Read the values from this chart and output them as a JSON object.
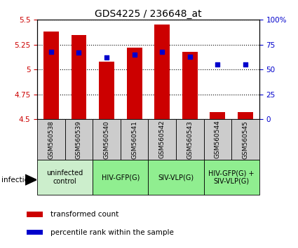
{
  "title": "GDS4225 / 236648_at",
  "samples": [
    "GSM560538",
    "GSM560539",
    "GSM560540",
    "GSM560541",
    "GSM560542",
    "GSM560543",
    "GSM560544",
    "GSM560545"
  ],
  "transformed_counts": [
    5.38,
    5.35,
    5.08,
    5.22,
    5.45,
    5.18,
    4.57,
    4.57
  ],
  "percentile_ranks": [
    68,
    67,
    62,
    65,
    68,
    63,
    55,
    55
  ],
  "ylim": [
    4.5,
    5.5
  ],
  "yticks": [
    4.5,
    4.75,
    5.0,
    5.25,
    5.5
  ],
  "ytick_labels": [
    "4.5",
    "4.75",
    "5",
    "5.25",
    "5.5"
  ],
  "y2lim": [
    0,
    100
  ],
  "y2ticks": [
    0,
    25,
    50,
    75,
    100
  ],
  "y2ticklabels": [
    "0",
    "25",
    "50",
    "75",
    "100%"
  ],
  "bar_color": "#cc0000",
  "dot_color": "#0000cc",
  "bar_width": 0.55,
  "group_labels": [
    "uninfected\ncontrol",
    "HIV-GFP(G)",
    "SIV-VLP(G)",
    "HIV-GFP(G) +\nSIV-VLP(G)"
  ],
  "group_ranges": [
    [
      0,
      1
    ],
    [
      2,
      3
    ],
    [
      4,
      5
    ],
    [
      6,
      7
    ]
  ],
  "group_colors": [
    "#cceecc",
    "#90ee90",
    "#90ee90",
    "#90ee90"
  ],
  "sample_bg_color": "#cccccc",
  "infection_label": "infection",
  "legend_bar_label": "transformed count",
  "legend_dot_label": "percentile rank within the sample",
  "title_fontsize": 10,
  "tick_fontsize": 7.5,
  "sample_fontsize": 6.5,
  "group_fontsize": 7
}
